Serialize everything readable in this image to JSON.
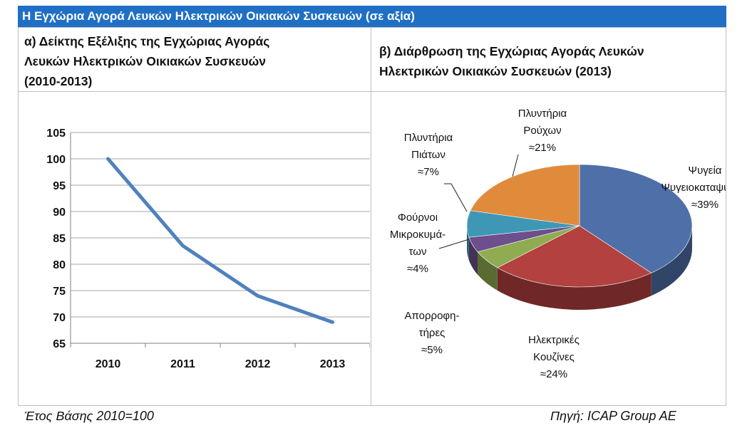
{
  "header": {
    "title": "Η Εγχώρια Αγορά Λευκών Ηλεκτρικών Οικιακών Συσκευών (σε αξία)"
  },
  "left_panel": {
    "heading_lines": [
      "α) Δείκτης Εξέλιξης της Εγχώριας Αγοράς",
      "Λευκών Ηλεκτρικών Οικιακών Συσκευών",
      "(2010-2013)"
    ]
  },
  "right_panel": {
    "heading_lines": [
      "β) Διάρθρωση  της Εγχώριας Αγοράς Λευκών",
      "Ηλεκτρικών Οικιακών Συσκευών  (2013)"
    ]
  },
  "footer": {
    "note": "Έτος Βάσης 2010=100",
    "source": "Πηγή: ICAP Group AE"
  },
  "chart_data": [
    {
      "type": "line",
      "categories": [
        "2010",
        "2011",
        "2012",
        "2013"
      ],
      "series": [
        {
          "values": [
            100,
            83.5,
            74,
            69
          ]
        }
      ],
      "ylim": [
        65,
        105
      ],
      "yticks": [
        "105",
        "100",
        "95",
        "90",
        "85",
        "80",
        "75",
        "70",
        "65"
      ],
      "grid": true,
      "color": "#4f81bd"
    },
    {
      "type": "pie",
      "slices": [
        {
          "label_lines": [
            "Ψυγεία",
            "Ψυγειοκαταψύκτες",
            "≈39%"
          ],
          "value": 39,
          "color": "#4f6fa8"
        },
        {
          "label_lines": [
            "Ηλεκτρικές",
            "Κουζίνες",
            "≈24%"
          ],
          "value": 24,
          "color": "#b3413f"
        },
        {
          "label_lines": [
            "Απορροφη-",
            "τήρες",
            "≈5%"
          ],
          "value": 5,
          "color": "#8fac52"
        },
        {
          "label_lines": [
            "Φούρνοι",
            "Μικροκυμά-",
            "των",
            "≈4%"
          ],
          "value": 4,
          "color": "#6c4f8c"
        },
        {
          "label_lines": [
            "Πλυντήρια",
            "Πιάτων",
            "≈7%"
          ],
          "value": 7,
          "color": "#3f97b6"
        },
        {
          "label_lines": [
            "Πλυντήρια",
            "Ρούχων",
            "≈21%"
          ],
          "value": 21,
          "color": "#e08b3c"
        }
      ]
    }
  ]
}
